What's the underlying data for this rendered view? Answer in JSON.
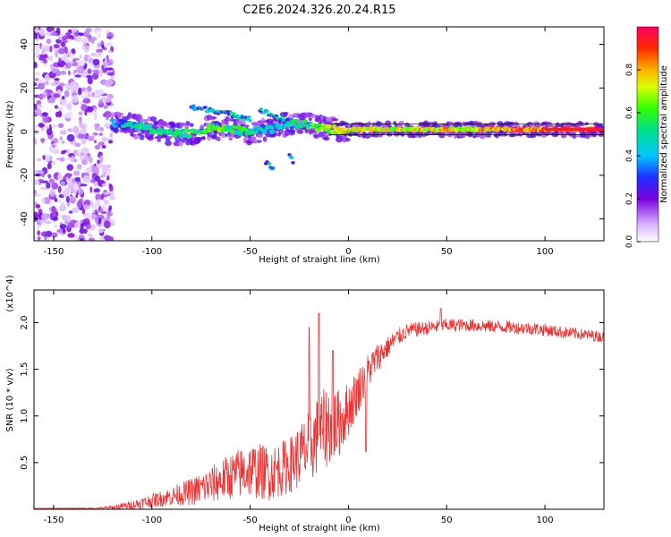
{
  "title": "C2E6.2024.326.20.24.R15",
  "colors": {
    "trace": "#ee3333",
    "axis": "#000000",
    "background": "#ffffff"
  },
  "chart_data": [
    {
      "type": "heatmap",
      "xlabel": "Height of straight line (km)",
      "ylabel": "Frequency (Hz)",
      "xlim": [
        -160,
        130
      ],
      "ylim": [
        -50,
        48
      ],
      "xticks": [
        -150,
        -100,
        -50,
        0,
        50,
        100
      ],
      "yticks": [
        -40,
        -20,
        0,
        20,
        40
      ],
      "colorbar": {
        "label": "Normalized spectral amplitude",
        "range": [
          0,
          1
        ],
        "ticks": [
          "0.0",
          "0.2",
          "0.4",
          "0.6",
          "0.8"
        ],
        "tick_values": [
          0.0,
          0.2,
          0.4,
          0.6,
          0.8
        ]
      },
      "ridge": {
        "x": [
          -120,
          -110,
          -100,
          -90,
          -80,
          -70,
          -60,
          -50,
          -40,
          -30,
          -20,
          -10,
          0,
          20,
          40,
          60,
          80,
          100,
          130
        ],
        "y": [
          4,
          3,
          1,
          -1,
          -1,
          2,
          1,
          0,
          1,
          4,
          3,
          1,
          1,
          1,
          1,
          1,
          1,
          1,
          1
        ],
        "amplitude": [
          0.3,
          0.45,
          0.5,
          0.5,
          0.55,
          0.6,
          0.55,
          0.5,
          0.4,
          0.45,
          0.55,
          0.65,
          0.7,
          0.7,
          0.75,
          0.75,
          0.8,
          0.85,
          0.95
        ]
      },
      "branches": [
        {
          "x": [
            -80,
            -70,
            -60,
            -50
          ],
          "y": [
            11,
            10,
            8,
            6
          ]
        },
        {
          "x": [
            -45,
            -40,
            -35,
            -30
          ],
          "y": [
            10,
            8,
            6,
            4
          ]
        },
        {
          "x": [
            -42,
            -38
          ],
          "y": [
            -14,
            -17
          ]
        },
        {
          "x": [
            -30,
            -28
          ],
          "y": [
            -10,
            -14
          ]
        }
      ],
      "noise_region": {
        "x": [
          -160,
          -120
        ],
        "y": [
          -50,
          48
        ]
      }
    },
    {
      "type": "line",
      "xlabel": "Height of straight line (km)",
      "ylabel": "SNR (10 * v/v)",
      "y_multiplier": "(x10^4)",
      "xlim": [
        -160,
        130
      ],
      "ylim": [
        0,
        2.35
      ],
      "xticks": [
        -150,
        -100,
        -50,
        0,
        50,
        100
      ],
      "yticks": [
        0.5,
        1.0,
        1.5,
        2.0
      ],
      "ytick_labels": [
        "0.5",
        "1.0",
        "1.5",
        "2.0"
      ],
      "trend": {
        "x": [
          -160,
          -130,
          -120,
          -110,
          -100,
          -90,
          -80,
          -70,
          -60,
          -50,
          -40,
          -30,
          -20,
          -15,
          -10,
          -5,
          0,
          5,
          10,
          15,
          20,
          25,
          30,
          40,
          50,
          60,
          70,
          80,
          90,
          100,
          110,
          120,
          130
        ],
        "y": [
          0.01,
          0.01,
          0.02,
          0.05,
          0.1,
          0.15,
          0.2,
          0.28,
          0.38,
          0.45,
          0.42,
          0.5,
          0.7,
          0.85,
          0.95,
          0.95,
          1.1,
          1.3,
          1.5,
          1.65,
          1.75,
          1.85,
          1.92,
          1.95,
          1.98,
          1.98,
          1.97,
          1.96,
          1.95,
          1.93,
          1.9,
          1.88,
          1.85
        ]
      },
      "noise_amplitude": {
        "x": [
          -160,
          -125,
          -110,
          -90,
          -70,
          -50,
          -30,
          -20,
          -10,
          0,
          10,
          20,
          30,
          60,
          90,
          130
        ],
        "y": [
          0.0,
          0.01,
          0.05,
          0.1,
          0.2,
          0.3,
          0.3,
          0.4,
          0.45,
          0.3,
          0.2,
          0.12,
          0.08,
          0.07,
          0.07,
          0.06
        ]
      },
      "spikes": [
        {
          "x": -15,
          "y": 2.1
        },
        {
          "x": -20,
          "y": 1.95
        },
        {
          "x": -8,
          "y": 1.7
        },
        {
          "x": 9,
          "y": 0.62
        },
        {
          "x": 47,
          "y": 2.15
        }
      ]
    }
  ]
}
